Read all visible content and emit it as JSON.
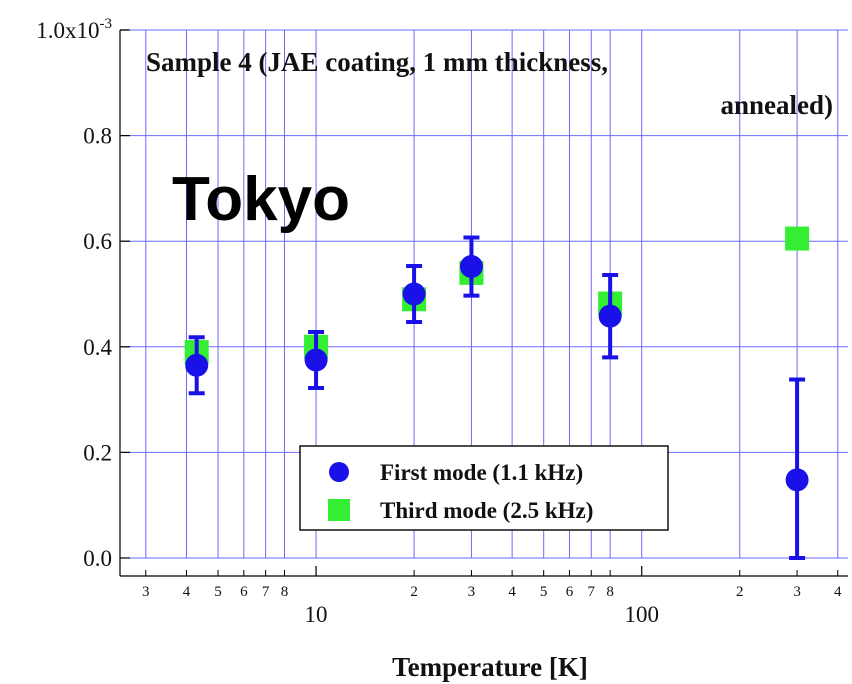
{
  "chart_data": {
    "type": "scatter",
    "title": "Sample 4 (JAE coating, 1 mm thickness,",
    "title_line2": "annealed)",
    "overlay_label": "Tokyo",
    "xlabel": "Temperature [K]",
    "ylabel": "",
    "x_scale": "log",
    "xlim": [
      2.5,
      430
    ],
    "ylim": [
      0.0,
      0.001
    ],
    "y_ticks": [
      {
        "value": 0.0,
        "label": "0.0"
      },
      {
        "value": 0.0002,
        "label": "0.2"
      },
      {
        "value": 0.0004,
        "label": "0.4"
      },
      {
        "value": 0.0006,
        "label": "0.6"
      },
      {
        "value": 0.0008,
        "label": "0.8"
      },
      {
        "value": 0.001,
        "label": "1.0x10",
        "exponent": "-3"
      }
    ],
    "x_major_ticks": [
      {
        "value": 10,
        "label": "10"
      },
      {
        "value": 100,
        "label": "100"
      }
    ],
    "x_minor_ticks": [
      {
        "value": 3,
        "label": "3"
      },
      {
        "value": 4,
        "label": "4"
      },
      {
        "value": 5,
        "label": "5"
      },
      {
        "value": 6,
        "label": "6"
      },
      {
        "value": 7,
        "label": "7"
      },
      {
        "value": 8,
        "label": "8"
      },
      {
        "value": 20,
        "label": "2"
      },
      {
        "value": 30,
        "label": "3"
      },
      {
        "value": 40,
        "label": "4"
      },
      {
        "value": 50,
        "label": "5"
      },
      {
        "value": 60,
        "label": "6"
      },
      {
        "value": 70,
        "label": "7"
      },
      {
        "value": 80,
        "label": "8"
      },
      {
        "value": 200,
        "label": "2"
      },
      {
        "value": 300,
        "label": "3"
      },
      {
        "value": 400,
        "label": "4"
      }
    ],
    "grid": true,
    "legend_position": "bottom-right",
    "series": [
      {
        "name": "First mode (1.1 kHz)",
        "marker": "circle",
        "color": "#1a10e8",
        "points": [
          {
            "x": 4.3,
            "y": 0.000365,
            "err": 5.3e-05
          },
          {
            "x": 10,
            "y": 0.000375,
            "err": 5.3e-05
          },
          {
            "x": 20,
            "y": 0.0005,
            "err": 5.3e-05
          },
          {
            "x": 30,
            "y": 0.000552,
            "err": 5.5e-05
          },
          {
            "x": 80,
            "y": 0.000458,
            "err": 7.8e-05
          },
          {
            "x": 300,
            "y": 0.000148,
            "err": 0.00019
          }
        ]
      },
      {
        "name": "Third mode (2.5 kHz)",
        "marker": "square",
        "color": "#33ee33",
        "points": [
          {
            "x": 4.3,
            "y": 0.00039
          },
          {
            "x": 10,
            "y": 0.0004
          },
          {
            "x": 20,
            "y": 0.00049
          },
          {
            "x": 30,
            "y": 0.00054
          },
          {
            "x": 80,
            "y": 0.000482
          },
          {
            "x": 300,
            "y": 0.000605
          }
        ]
      }
    ],
    "colors": {
      "grid": "#6b6bff",
      "axis": "#000000"
    }
  }
}
